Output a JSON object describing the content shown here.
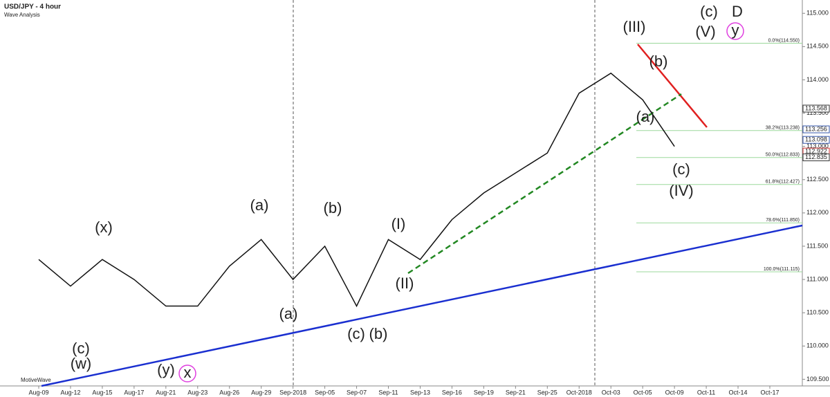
{
  "chart_data": {
    "type": "line",
    "title": "USD/JPY - 4 hour",
    "subtitle": "Wave Analysis",
    "watermark": "MotiveWave",
    "categories": [
      "Aug-09",
      "Aug-12",
      "Aug-15",
      "Aug-17",
      "Aug-21",
      "Aug-23",
      "Aug-26",
      "Aug-29",
      "Sep-2018",
      "Sep-05",
      "Sep-07",
      "Sep-11",
      "Sep-13",
      "Sep-16",
      "Sep-19",
      "Sep-21",
      "Sep-25",
      "Oct-2018",
      "Oct-03",
      "Oct-05",
      "Oct-09",
      "Oct-11",
      "Oct-14",
      "Oct-17"
    ],
    "series": [
      {
        "name": "USD/JPY",
        "color": "#111111",
        "values": [
          111.3,
          110.9,
          111.3,
          111.0,
          110.6,
          110.6,
          111.2,
          111.6,
          111.0,
          111.5,
          110.6,
          111.6,
          111.3,
          111.9,
          112.3,
          112.6,
          112.9,
          113.8,
          114.1,
          113.7,
          113.0,
          null,
          null,
          null
        ]
      }
    ],
    "ylim": [
      109.4,
      115.2
    ],
    "yticks": [
      {
        "value": 109.5,
        "label": "109.500"
      },
      {
        "value": 110.0,
        "label": "110.000"
      },
      {
        "value": 110.5,
        "label": "110.500"
      },
      {
        "value": 111.0,
        "label": "111.000"
      },
      {
        "value": 111.5,
        "label": "111.500"
      },
      {
        "value": 112.0,
        "label": "112.000"
      },
      {
        "value": 112.5,
        "label": "112.500"
      },
      {
        "value": 113.0,
        "label": "113.000"
      },
      {
        "value": 113.5,
        "label": "113.500"
      },
      {
        "value": 114.0,
        "label": "114.000"
      },
      {
        "value": 114.5,
        "label": "114.500"
      },
      {
        "value": 115.0,
        "label": "115.000"
      }
    ],
    "price_markers": [
      {
        "value": 113.568,
        "label": "113.568",
        "color": "#333333"
      },
      {
        "value": 113.256,
        "label": "113.256",
        "color": "#3355aa"
      },
      {
        "value": 113.098,
        "label": "113.098",
        "color": "#3355aa"
      },
      {
        "value": 112.922,
        "label": "112.922",
        "color": "#cc3333"
      },
      {
        "value": 112.835,
        "label": "112.835",
        "color": "#333333"
      }
    ],
    "fib_levels": [
      {
        "value": 114.55,
        "label": "0.0%(114.550)"
      },
      {
        "value": 113.238,
        "label": "38.2%(113.238)"
      },
      {
        "value": 112.833,
        "label": "50.0%(112.833)"
      },
      {
        "value": 112.427,
        "label": "61.8%(112.427)"
      },
      {
        "value": 111.85,
        "label": "78.6%(111.850)"
      },
      {
        "value": 111.115,
        "label": "100.0%(111.115)"
      }
    ],
    "annotations": [
      {
        "text": "(c)",
        "color": "#6a1b7a"
      },
      {
        "text": "D",
        "color": "#c58fe0"
      },
      {
        "text": "(III)",
        "color": "#1a2fbf"
      },
      {
        "text": "(V)",
        "color": "#1a2fbf"
      },
      {
        "text": "y",
        "color": "#e040e0"
      },
      {
        "text": "(b)",
        "color": "#f07020"
      },
      {
        "text": "(a)",
        "color": "#f07020"
      },
      {
        "text": "(c)",
        "color": "#f07020"
      },
      {
        "text": "(IV)",
        "color": "#1a2fbf"
      },
      {
        "text": "(a)",
        "color": "#6a1b7a"
      },
      {
        "text": "(b)",
        "color": "#1a2fbf"
      },
      {
        "text": "(x)",
        "color": "#6a1b7a"
      },
      {
        "text": "(I)",
        "color": "#1a2fbf"
      },
      {
        "text": "(II)",
        "color": "#1a2fbf"
      },
      {
        "text": "(a)",
        "color": "#1a2fbf"
      },
      {
        "text": "(c)",
        "color": "#1a2fbf"
      },
      {
        "text": "(b)",
        "color": "#6a1b7a"
      },
      {
        "text": "(c)",
        "color": "#1a2fbf"
      },
      {
        "text": "(w)",
        "color": "#6a1b7a"
      },
      {
        "text": "(y)",
        "color": "#6a1b7a"
      },
      {
        "text": "x",
        "color": "#e040e0"
      }
    ]
  }
}
